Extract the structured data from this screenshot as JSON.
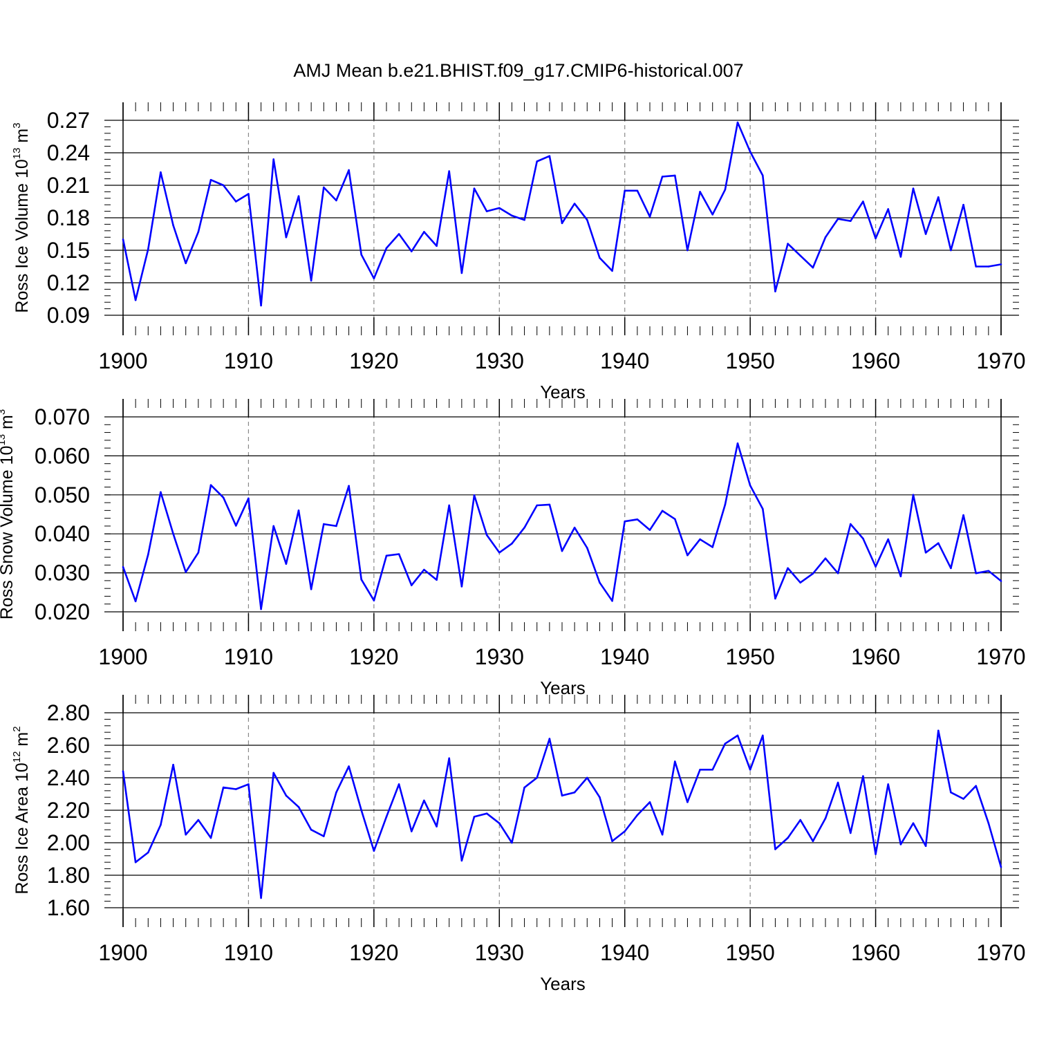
{
  "chart_data": [
    {
      "type": "line",
      "title": "AMJ Mean b.e21.BHIST.f09_g17.CMIP6-historical.007",
      "xlabel": "Years",
      "ylabel": {
        "text": "Ross Ice Volume 10",
        "sup": "13",
        "unit": " m",
        "unit_sup": "3"
      },
      "x": [
        1900,
        1901,
        1902,
        1903,
        1904,
        1905,
        1906,
        1907,
        1908,
        1909,
        1910,
        1911,
        1912,
        1913,
        1914,
        1915,
        1916,
        1917,
        1918,
        1919,
        1920,
        1921,
        1922,
        1923,
        1924,
        1925,
        1926,
        1927,
        1928,
        1929,
        1930,
        1931,
        1932,
        1933,
        1934,
        1935,
        1936,
        1937,
        1938,
        1939,
        1940,
        1941,
        1942,
        1943,
        1944,
        1945,
        1946,
        1947,
        1948,
        1949,
        1950,
        1951,
        1952,
        1953,
        1954,
        1955,
        1956,
        1957,
        1958,
        1959,
        1960,
        1961,
        1962,
        1963,
        1964,
        1965,
        1966,
        1967,
        1968,
        1969,
        1970
      ],
      "values": [
        0.16,
        0.104,
        0.151,
        0.222,
        0.173,
        0.138,
        0.167,
        0.215,
        0.21,
        0.195,
        0.202,
        0.099,
        0.234,
        0.162,
        0.2,
        0.122,
        0.208,
        0.196,
        0.224,
        0.146,
        0.124,
        0.152,
        0.165,
        0.149,
        0.167,
        0.154,
        0.223,
        0.129,
        0.207,
        0.186,
        0.189,
        0.182,
        0.178,
        0.232,
        0.237,
        0.175,
        0.193,
        0.178,
        0.143,
        0.131,
        0.205,
        0.205,
        0.181,
        0.218,
        0.219,
        0.15,
        0.204,
        0.183,
        0.206,
        0.268,
        0.241,
        0.219,
        0.112,
        0.156,
        0.145,
        0.134,
        0.162,
        0.179,
        0.177,
        0.195,
        0.161,
        0.188,
        0.144,
        0.207,
        0.165,
        0.199,
        0.15,
        0.192,
        0.135,
        0.135,
        0.137
      ],
      "xlim": [
        1900,
        1970
      ],
      "ylim": [
        0.09,
        0.27
      ],
      "yticks": [
        0.09,
        0.12,
        0.15,
        0.18,
        0.21,
        0.24,
        0.27
      ],
      "ytick_labels": [
        "0.09",
        "0.12",
        "0.15",
        "0.18",
        "0.21",
        "0.24",
        "0.27"
      ],
      "xticks": [
        1900,
        1910,
        1920,
        1930,
        1940,
        1950,
        1960,
        1970
      ],
      "xtick_labels": [
        "1900",
        "1910",
        "1920",
        "1930",
        "1940",
        "1950",
        "1960",
        "1970"
      ],
      "color": "#0000ff"
    },
    {
      "type": "line",
      "xlabel": "Years",
      "ylabel": {
        "text": "Ross Snow Volume 10",
        "sup": "13",
        "unit": " m",
        "unit_sup": "3"
      },
      "x": [
        1900,
        1901,
        1902,
        1903,
        1904,
        1905,
        1906,
        1907,
        1908,
        1909,
        1910,
        1911,
        1912,
        1913,
        1914,
        1915,
        1916,
        1917,
        1918,
        1919,
        1920,
        1921,
        1922,
        1923,
        1924,
        1925,
        1926,
        1927,
        1928,
        1929,
        1930,
        1931,
        1932,
        1933,
        1934,
        1935,
        1936,
        1937,
        1938,
        1939,
        1940,
        1941,
        1942,
        1943,
        1944,
        1945,
        1946,
        1947,
        1948,
        1949,
        1950,
        1951,
        1952,
        1953,
        1954,
        1955,
        1956,
        1957,
        1958,
        1959,
        1960,
        1961,
        1962,
        1963,
        1964,
        1965,
        1966,
        1967,
        1968,
        1969,
        1970
      ],
      "values": [
        0.0315,
        0.0227,
        0.0347,
        0.0507,
        0.04,
        0.0302,
        0.0352,
        0.0525,
        0.0493,
        0.0421,
        0.0491,
        0.0207,
        0.042,
        0.0323,
        0.046,
        0.0258,
        0.0425,
        0.042,
        0.0523,
        0.0283,
        0.0229,
        0.0344,
        0.0348,
        0.0268,
        0.0308,
        0.0282,
        0.0473,
        0.0265,
        0.0499,
        0.0397,
        0.0352,
        0.0375,
        0.0416,
        0.0473,
        0.0475,
        0.0356,
        0.0416,
        0.0364,
        0.0275,
        0.0228,
        0.0432,
        0.0437,
        0.041,
        0.0459,
        0.0438,
        0.0345,
        0.0386,
        0.0366,
        0.0475,
        0.0632,
        0.0524,
        0.0464,
        0.0234,
        0.0312,
        0.0275,
        0.0298,
        0.0337,
        0.0299,
        0.0425,
        0.0388,
        0.0316,
        0.0386,
        0.0291,
        0.05,
        0.0352,
        0.0376,
        0.0312,
        0.0448,
        0.0299,
        0.0305,
        0.0279
      ],
      "xlim": [
        1900,
        1970
      ],
      "ylim": [
        0.02,
        0.07
      ],
      "yticks": [
        0.02,
        0.03,
        0.04,
        0.05,
        0.06,
        0.07
      ],
      "ytick_labels": [
        "0.020",
        "0.030",
        "0.040",
        "0.050",
        "0.060",
        "0.070"
      ],
      "xticks": [
        1900,
        1910,
        1920,
        1930,
        1940,
        1950,
        1960,
        1970
      ],
      "xtick_labels": [
        "1900",
        "1910",
        "1920",
        "1930",
        "1940",
        "1950",
        "1960",
        "1970"
      ],
      "color": "#0000ff"
    },
    {
      "type": "line",
      "xlabel": "Years",
      "ylabel": {
        "text": "Ross Ice Area 10",
        "sup": "12",
        "unit": " m",
        "unit_sup": "2"
      },
      "x": [
        1900,
        1901,
        1902,
        1903,
        1904,
        1905,
        1906,
        1907,
        1908,
        1909,
        1910,
        1911,
        1912,
        1913,
        1914,
        1915,
        1916,
        1917,
        1918,
        1919,
        1920,
        1921,
        1922,
        1923,
        1924,
        1925,
        1926,
        1927,
        1928,
        1929,
        1930,
        1931,
        1932,
        1933,
        1934,
        1935,
        1936,
        1937,
        1938,
        1939,
        1940,
        1941,
        1942,
        1943,
        1944,
        1945,
        1946,
        1947,
        1948,
        1949,
        1950,
        1951,
        1952,
        1953,
        1954,
        1955,
        1956,
        1957,
        1958,
        1959,
        1960,
        1961,
        1962,
        1963,
        1964,
        1965,
        1966,
        1967,
        1968,
        1969,
        1970
      ],
      "values": [
        2.44,
        1.88,
        1.94,
        2.11,
        2.48,
        2.05,
        2.14,
        2.03,
        2.34,
        2.33,
        2.36,
        1.66,
        2.43,
        2.29,
        2.22,
        2.08,
        2.04,
        2.31,
        2.47,
        2.2,
        1.95,
        2.16,
        2.36,
        2.07,
        2.26,
        2.1,
        2.52,
        1.89,
        2.16,
        2.18,
        2.12,
        2.0,
        2.34,
        2.4,
        2.64,
        2.29,
        2.31,
        2.4,
        2.28,
        2.01,
        2.07,
        2.17,
        2.25,
        2.05,
        2.5,
        2.25,
        2.45,
        2.45,
        2.61,
        2.66,
        2.45,
        2.66,
        1.96,
        2.03,
        2.14,
        2.01,
        2.15,
        2.37,
        2.06,
        2.41,
        1.93,
        2.36,
        1.99,
        2.12,
        1.98,
        2.69,
        2.31,
        2.27,
        2.35,
        2.12,
        1.85
      ],
      "xlim": [
        1900,
        1970
      ],
      "ylim": [
        1.6,
        2.8
      ],
      "yticks": [
        1.6,
        1.8,
        2.0,
        2.2,
        2.4,
        2.6,
        2.8
      ],
      "ytick_labels": [
        "1.60",
        "1.80",
        "2.00",
        "2.20",
        "2.40",
        "2.60",
        "2.80"
      ],
      "xticks": [
        1900,
        1910,
        1920,
        1930,
        1940,
        1950,
        1960,
        1970
      ],
      "xtick_labels": [
        "1900",
        "1910",
        "1920",
        "1930",
        "1940",
        "1950",
        "1960",
        "1970"
      ],
      "color": "#0000ff"
    }
  ]
}
